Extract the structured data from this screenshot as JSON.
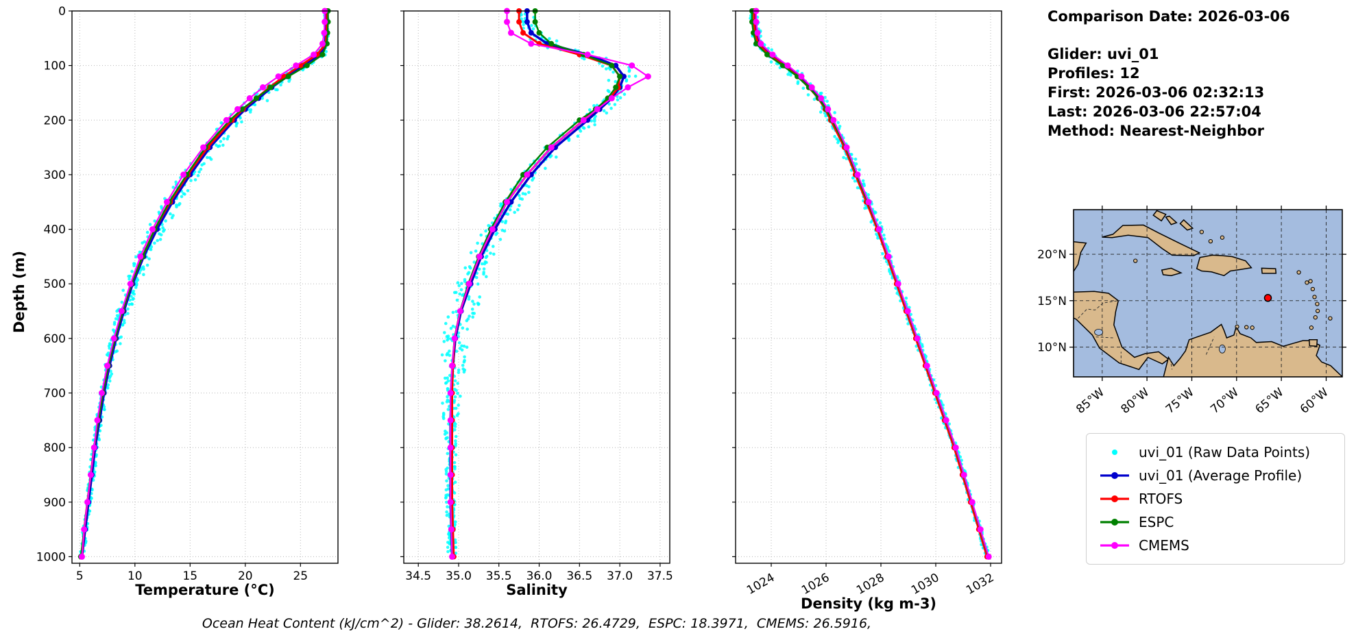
{
  "info": {
    "comparison_date": "Comparison Date: 2026-03-06",
    "glider": "Glider: uvi_01",
    "profiles": "Profiles: 12",
    "first": "First: 2026-03-06 02:32:13",
    "last": "Last: 2026-03-06 22:57:04",
    "method": "Method: Nearest-Neighbor"
  },
  "caption": "Ocean Heat Content (kJ/cm^2) - Glider: 38.2614,  RTOFS: 26.4729,  ESPC: 18.3971,  CMEMS: 26.5916,",
  "axes": {
    "y_label": "Depth (m)"
  },
  "legend": {
    "items": [
      {
        "label": "uvi_01 (Raw Data Points)",
        "color": "#00ffff",
        "marker": "dot"
      },
      {
        "label": "uvi_01 (Average Profile)",
        "color": "#0000cd",
        "marker": "line-dot"
      },
      {
        "label": "RTOFS",
        "color": "#ff0000",
        "marker": "line-dot"
      },
      {
        "label": "ESPC",
        "color": "#008000",
        "marker": "line-dot"
      },
      {
        "label": "CMEMS",
        "color": "#ff00ff",
        "marker": "line-dot"
      }
    ]
  },
  "map": {
    "extent": {
      "lon_min": -88.2,
      "lon_max": -58.2,
      "lat_min": 6.8,
      "lat_max": 24.8
    },
    "lat_ticks": [
      {
        "value": 20,
        "label": "20°N"
      },
      {
        "value": 15,
        "label": "15°N"
      },
      {
        "value": 10,
        "label": "10°N"
      }
    ],
    "lon_ticks": [
      {
        "value": -85,
        "label": "85°W"
      },
      {
        "value": -80,
        "label": "80°W"
      },
      {
        "value": -75,
        "label": "75°W"
      },
      {
        "value": -70,
        "label": "70°W"
      },
      {
        "value": -65,
        "label": "65°W"
      },
      {
        "value": -60,
        "label": "60°W"
      }
    ],
    "marker": {
      "lon": -66.5,
      "lat": 15.3,
      "color": "#ff0000"
    },
    "ocean_color": "#a4bcdf",
    "land_color": "#d9b98c"
  },
  "chart_data": [
    {
      "id": "temperature",
      "type": "line",
      "xlabel": "Temperature (°C)",
      "ylabel": "Depth (m)",
      "xlim": [
        4.3,
        28.4
      ],
      "xticks": [
        5,
        10,
        15,
        20,
        25
      ],
      "xtick_labels": [
        "5",
        "10",
        "15",
        "20",
        "25"
      ],
      "ylim": [
        0,
        1012
      ],
      "yticks": [
        0,
        100,
        200,
        300,
        400,
        500,
        600,
        700,
        800,
        900,
        1000
      ],
      "depths": [
        0,
        20,
        40,
        60,
        80,
        100,
        120,
        140,
        160,
        180,
        200,
        250,
        300,
        350,
        400,
        450,
        500,
        550,
        600,
        650,
        700,
        750,
        800,
        850,
        900,
        950,
        1000
      ],
      "raw": {
        "name": "uvi_01 (Raw Data Points)",
        "color": "#00ffff",
        "spread": [
          [
            0,
            0.15
          ],
          [
            60,
            0.3
          ],
          [
            100,
            0.85
          ],
          [
            160,
            0.95
          ],
          [
            260,
            0.9
          ],
          [
            400,
            0.8
          ],
          [
            550,
            0.6
          ],
          [
            700,
            0.35
          ],
          [
            850,
            0.25
          ],
          [
            1000,
            0.2
          ]
        ]
      },
      "series": [
        {
          "name": "uvi_01 (Average Profile)",
          "color": "#0000cd",
          "width": 3.5,
          "marker_r": 4,
          "values": [
            27.3,
            27.3,
            27.3,
            27.25,
            26.8,
            25.2,
            23.8,
            22.4,
            21.2,
            20.0,
            19.0,
            16.8,
            15.0,
            13.4,
            12.0,
            10.8,
            9.8,
            9.0,
            8.3,
            7.7,
            7.2,
            6.8,
            6.4,
            6.1,
            5.8,
            5.5,
            5.2
          ]
        },
        {
          "name": "RTOFS",
          "color": "#ff0000",
          "width": 3,
          "marker_r": 4,
          "values": [
            27.4,
            27.4,
            27.35,
            27.3,
            26.5,
            25.0,
            23.5,
            22.2,
            21.0,
            19.8,
            18.8,
            16.6,
            14.8,
            13.2,
            11.8,
            10.7,
            9.7,
            8.9,
            8.2,
            7.6,
            7.1,
            6.7,
            6.3,
            6.0,
            5.7,
            5.4,
            5.2
          ]
        },
        {
          "name": "ESPC",
          "color": "#008000",
          "width": 2.5,
          "marker_r": 4,
          "values": [
            27.5,
            27.5,
            27.45,
            27.4,
            27.0,
            25.6,
            23.9,
            22.3,
            21.0,
            19.7,
            18.6,
            16.4,
            14.7,
            13.1,
            11.8,
            10.7,
            9.7,
            8.9,
            8.2,
            7.6,
            7.1,
            6.7,
            6.3,
            6.0,
            5.7,
            5.4,
            5.1
          ]
        },
        {
          "name": "CMEMS",
          "color": "#ff00ff",
          "width": 2.2,
          "marker_r": 4.5,
          "values": [
            27.2,
            27.2,
            27.15,
            27.0,
            26.2,
            24.6,
            23.0,
            21.6,
            20.4,
            19.3,
            18.3,
            16.2,
            14.4,
            12.9,
            11.6,
            10.5,
            9.6,
            8.8,
            8.1,
            7.5,
            7.0,
            6.6,
            6.3,
            6.0,
            5.7,
            5.4,
            5.2
          ]
        }
      ]
    },
    {
      "id": "salinity",
      "type": "line",
      "xlabel": "Salinity",
      "ylabel": "Depth (m)",
      "xlim": [
        34.32,
        37.62
      ],
      "xticks": [
        34.5,
        35.0,
        35.5,
        36.0,
        36.5,
        37.0,
        37.5
      ],
      "xtick_labels": [
        "34.5",
        "35.0",
        "35.5",
        "36.0",
        "36.5",
        "37.0",
        "37.5"
      ],
      "ylim": [
        0,
        1012
      ],
      "yticks": [
        0,
        100,
        200,
        300,
        400,
        500,
        600,
        700,
        800,
        900,
        1000
      ],
      "depths": [
        0,
        20,
        40,
        60,
        80,
        100,
        120,
        140,
        160,
        180,
        200,
        250,
        300,
        350,
        400,
        450,
        500,
        550,
        600,
        650,
        700,
        750,
        800,
        850,
        900,
        950,
        1000
      ],
      "raw": {
        "name": "uvi_01 (Raw Data Points)",
        "color": "#00ffff",
        "spread": [
          [
            0,
            0.1
          ],
          [
            60,
            0.15
          ],
          [
            110,
            0.18
          ],
          [
            250,
            0.12
          ],
          [
            400,
            0.14
          ],
          [
            550,
            0.2
          ],
          [
            650,
            0.15
          ],
          [
            780,
            0.07
          ],
          [
            1000,
            0.05
          ]
        ]
      },
      "series": [
        {
          "name": "uvi_01 (Average Profile)",
          "color": "#0000cd",
          "width": 3.5,
          "marker_r": 4,
          "values": [
            35.85,
            35.85,
            35.9,
            36.1,
            36.6,
            36.95,
            37.05,
            37.0,
            36.9,
            36.75,
            36.6,
            36.2,
            35.9,
            35.65,
            35.45,
            35.28,
            35.15,
            35.03,
            34.96,
            34.93,
            34.91,
            34.9,
            34.9,
            34.9,
            34.9,
            34.91,
            34.92
          ]
        },
        {
          "name": "RTOFS",
          "color": "#ff0000",
          "width": 3,
          "marker_r": 4,
          "values": [
            35.75,
            35.75,
            35.8,
            36.0,
            36.5,
            36.9,
            37.0,
            36.98,
            36.88,
            36.72,
            36.55,
            36.15,
            35.85,
            35.6,
            35.42,
            35.26,
            35.13,
            35.02,
            34.95,
            34.93,
            34.92,
            34.92,
            34.92,
            34.92,
            34.92,
            34.93,
            34.94
          ]
        },
        {
          "name": "ESPC",
          "color": "#008000",
          "width": 2.5,
          "marker_r": 4,
          "values": [
            35.95,
            35.95,
            36.0,
            36.15,
            36.55,
            36.9,
            37.0,
            36.95,
            36.85,
            36.7,
            36.5,
            36.1,
            35.8,
            35.58,
            35.4,
            35.25,
            35.12,
            35.02,
            34.95,
            34.92,
            34.9,
            34.9,
            34.9,
            34.9,
            34.9,
            34.91,
            34.92
          ]
        },
        {
          "name": "CMEMS",
          "color": "#ff00ff",
          "width": 2.2,
          "marker_r": 4.5,
          "values": [
            35.6,
            35.6,
            35.65,
            35.9,
            36.6,
            37.15,
            37.35,
            37.1,
            36.9,
            36.72,
            36.55,
            36.15,
            35.85,
            35.6,
            35.42,
            35.26,
            35.13,
            35.02,
            34.95,
            34.92,
            34.9,
            34.9,
            34.9,
            34.9,
            34.9,
            34.91,
            34.92
          ]
        }
      ]
    },
    {
      "id": "density",
      "type": "line",
      "xlabel": "Density (kg m-3)",
      "ylabel": "Depth (m)",
      "xlim": [
        1022.7,
        1032.4
      ],
      "xticks": [
        1024,
        1026,
        1028,
        1030,
        1032
      ],
      "xtick_labels": [
        "1024",
        "1026",
        "1028",
        "1030",
        "1032"
      ],
      "ylim": [
        0,
        1012
      ],
      "yticks": [
        0,
        100,
        200,
        300,
        400,
        500,
        600,
        700,
        800,
        900,
        1000
      ],
      "depths": [
        0,
        20,
        40,
        60,
        80,
        100,
        120,
        140,
        160,
        180,
        200,
        250,
        300,
        350,
        400,
        450,
        500,
        550,
        600,
        650,
        700,
        750,
        800,
        850,
        900,
        950,
        1000
      ],
      "raw": {
        "name": "uvi_01 (Raw Data Points)",
        "color": "#00ffff",
        "spread": [
          [
            0,
            0.15
          ],
          [
            100,
            0.25
          ],
          [
            300,
            0.18
          ],
          [
            500,
            0.13
          ],
          [
            700,
            0.1
          ],
          [
            1000,
            0.08
          ]
        ]
      },
      "series": [
        {
          "name": "uvi_01 (Average Profile)",
          "color": "#0000cd",
          "width": 3.5,
          "marker_r": 4,
          "values": [
            1023.4,
            1023.4,
            1023.45,
            1023.55,
            1023.95,
            1024.5,
            1025.0,
            1025.4,
            1025.75,
            1026.0,
            1026.2,
            1026.7,
            1027.1,
            1027.5,
            1027.9,
            1028.25,
            1028.6,
            1028.95,
            1029.3,
            1029.65,
            1030.0,
            1030.35,
            1030.7,
            1031.0,
            1031.3,
            1031.6,
            1031.9
          ]
        },
        {
          "name": "RTOFS",
          "color": "#ff0000",
          "width": 3,
          "marker_r": 4,
          "values": [
            1023.37,
            1023.37,
            1023.42,
            1023.52,
            1023.92,
            1024.47,
            1024.97,
            1025.37,
            1025.72,
            1025.97,
            1026.17,
            1026.67,
            1027.07,
            1027.47,
            1027.87,
            1028.22,
            1028.57,
            1028.92,
            1029.27,
            1029.62,
            1029.97,
            1030.32,
            1030.67,
            1030.97,
            1031.27,
            1031.57,
            1031.87
          ]
        },
        {
          "name": "ESPC",
          "color": "#008000",
          "width": 2.5,
          "marker_r": 4,
          "values": [
            1023.3,
            1023.3,
            1023.35,
            1023.45,
            1023.85,
            1024.42,
            1024.95,
            1025.37,
            1025.73,
            1026.0,
            1026.22,
            1026.72,
            1027.12,
            1027.52,
            1027.92,
            1028.27,
            1028.62,
            1028.97,
            1029.32,
            1029.67,
            1030.02,
            1030.37,
            1030.72,
            1031.02,
            1031.32,
            1031.62,
            1031.92
          ]
        },
        {
          "name": "CMEMS",
          "color": "#ff00ff",
          "width": 2.2,
          "marker_r": 4.5,
          "values": [
            1023.45,
            1023.45,
            1023.5,
            1023.62,
            1024.05,
            1024.6,
            1025.1,
            1025.48,
            1025.82,
            1026.07,
            1026.27,
            1026.75,
            1027.15,
            1027.55,
            1027.93,
            1028.28,
            1028.63,
            1028.98,
            1029.33,
            1029.68,
            1030.03,
            1030.38,
            1030.73,
            1031.03,
            1031.33,
            1031.63,
            1031.93
          ]
        }
      ]
    }
  ]
}
